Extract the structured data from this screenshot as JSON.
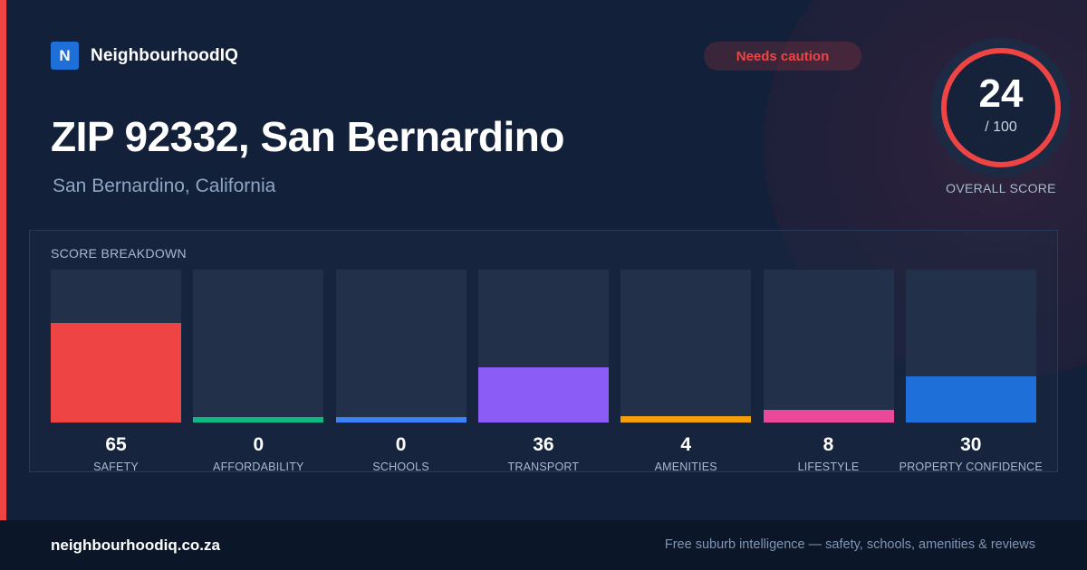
{
  "brand": {
    "logo_letter": "N",
    "name": "NeighbourhoodIQ",
    "logo_color": "#1f6fd8"
  },
  "badge": {
    "label": "Needs caution",
    "color": "#ef4444"
  },
  "header": {
    "title": "ZIP 92332, San Bernardino",
    "subtitle": "San Bernardino, California"
  },
  "overall": {
    "score": "24",
    "max_label": "/ 100",
    "label": "OVERALL SCORE",
    "ring_color": "#ef4444",
    "ring_fraction": 1
  },
  "accent_color": "#ef4444",
  "chart_data": {
    "type": "bar",
    "title": "SCORE BREAKDOWN",
    "ylim": [
      0,
      100
    ],
    "categories": [
      "SAFETY",
      "AFFORDABILITY",
      "SCHOOLS",
      "TRANSPORT",
      "AMENITIES",
      "LIFESTYLE",
      "PROPERTY CONFIDENCE"
    ],
    "values": [
      65,
      0,
      0,
      36,
      4,
      8,
      30
    ],
    "colors": [
      "#ef4444",
      "#10b981",
      "#3b82f6",
      "#8b5cf6",
      "#f59e0b",
      "#ec4899",
      "#1f6fd8"
    ],
    "grid": false
  },
  "footer": {
    "domain": "neighbourhoodiq.co.za",
    "tagline": "Free suburb intelligence — safety, schools, amenities & reviews"
  }
}
